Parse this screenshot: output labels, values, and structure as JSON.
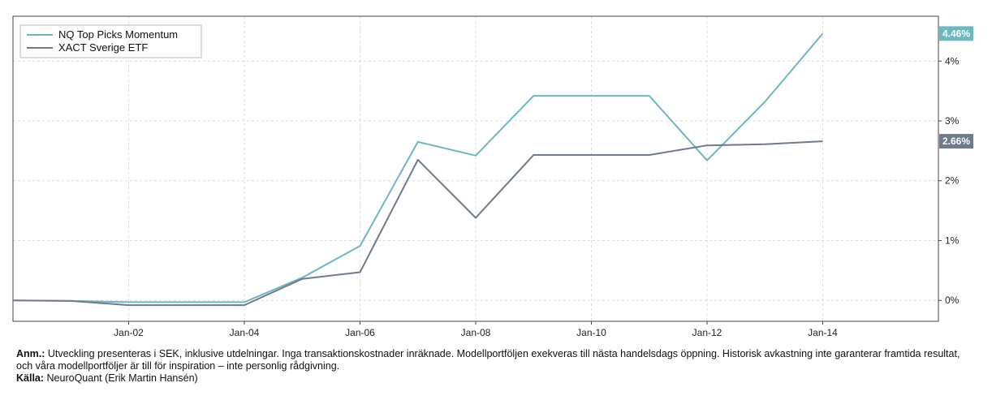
{
  "chart_data": {
    "type": "line",
    "title": "",
    "xlabel": "",
    "ylabel": "",
    "x": [
      2000,
      2001,
      2002,
      2003,
      2004,
      2005,
      2006,
      2007,
      2008,
      2009,
      2010,
      2011,
      2012,
      2013,
      2014
    ],
    "xlim": [
      2000,
      2016
    ],
    "xticks": [
      2002,
      2004,
      2006,
      2008,
      2010,
      2012,
      2014
    ],
    "xtick_labels": [
      "Jan-02",
      "Jan-04",
      "Jan-06",
      "Jan-08",
      "Jan-10",
      "Jan-12",
      "Jan-14"
    ],
    "ylim": [
      -0.35,
      4.75
    ],
    "yticks": [
      0,
      1,
      2,
      3,
      4
    ],
    "ytick_labels": [
      "0%",
      "1%",
      "2%",
      "3%",
      "4%"
    ],
    "y_axis_position": "right",
    "grid": true,
    "legend_position": "top-left",
    "series": [
      {
        "name": "NQ Top Picks Momentum",
        "color": "#6bb8bf",
        "values": [
          0,
          -0.01,
          -0.03,
          -0.03,
          -0.03,
          0.38,
          0.91,
          2.65,
          2.42,
          3.42,
          3.42,
          3.42,
          2.34,
          3.32,
          4.46
        ],
        "end_label": "4.46%"
      },
      {
        "name": "XACT Sverige ETF",
        "color": "#6f7a8a",
        "values": [
          0,
          -0.01,
          -0.08,
          -0.08,
          -0.08,
          0.36,
          0.47,
          2.35,
          1.38,
          2.43,
          2.43,
          2.43,
          2.59,
          2.61,
          2.66
        ],
        "end_label": "2.66%"
      }
    ]
  },
  "notes": {
    "anm_label": "Anm.:",
    "anm_text": " Utveckling presenteras i SEK, inklusive utdelningar. Inga transaktionskostnader inräknade. Modellportföljen exekveras till nästa handelsdags öppning. Historisk avkastning inte garanterar framtida resultat, och våra modellportföljer är till för inspiration – inte personlig rådgivning.",
    "source_label": "Källa:",
    "source_text": " NeuroQuant (Erik Martin Hansén)"
  }
}
